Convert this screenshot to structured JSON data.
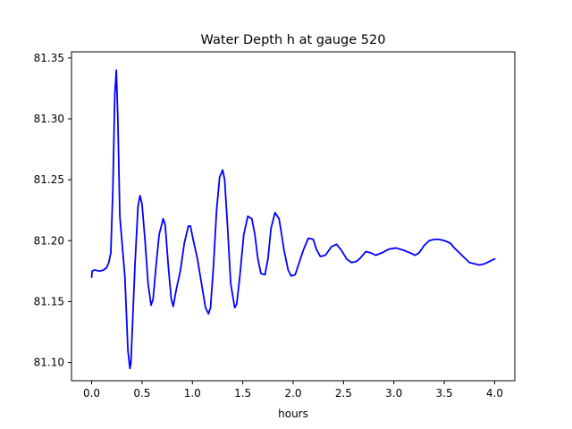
{
  "chart_data": {
    "type": "line",
    "title": "Water Depth h at gauge 520",
    "xlabel": "hours",
    "ylabel": "",
    "xlim": [
      -0.2,
      4.2
    ],
    "ylim": [
      81.085,
      81.355
    ],
    "xticks": [
      0.0,
      0.5,
      1.0,
      1.5,
      2.0,
      2.5,
      3.0,
      3.5,
      4.0
    ],
    "xtick_labels": [
      "0.0",
      "0.5",
      "1.0",
      "1.5",
      "2.0",
      "2.5",
      "3.0",
      "3.5",
      "4.0"
    ],
    "yticks": [
      81.1,
      81.15,
      81.2,
      81.25,
      81.3,
      81.35
    ],
    "ytick_labels": [
      "81.10",
      "81.15",
      "81.20",
      "81.25",
      "81.30",
      "81.35"
    ],
    "grid": false,
    "series": [
      {
        "color": "#0000ff",
        "x": [
          0.0,
          0.005,
          0.03,
          0.08,
          0.12,
          0.15,
          0.17,
          0.19,
          0.21,
          0.23,
          0.245,
          0.26,
          0.28,
          0.3,
          0.33,
          0.36,
          0.38,
          0.39,
          0.41,
          0.43,
          0.46,
          0.48,
          0.5,
          0.53,
          0.56,
          0.59,
          0.61,
          0.64,
          0.67,
          0.71,
          0.73,
          0.76,
          0.79,
          0.81,
          0.84,
          0.88,
          0.92,
          0.96,
          0.98,
          1.01,
          1.05,
          1.09,
          1.13,
          1.16,
          1.18,
          1.21,
          1.24,
          1.27,
          1.3,
          1.32,
          1.35,
          1.38,
          1.42,
          1.44,
          1.47,
          1.51,
          1.55,
          1.59,
          1.62,
          1.65,
          1.68,
          1.72,
          1.75,
          1.78,
          1.82,
          1.86,
          1.88,
          1.91,
          1.95,
          1.98,
          2.02,
          2.06,
          2.1,
          2.15,
          2.2,
          2.23,
          2.27,
          2.32,
          2.38,
          2.43,
          2.48,
          2.53,
          2.58,
          2.63,
          2.67,
          2.72,
          2.77,
          2.82,
          2.88,
          2.95,
          3.02,
          3.1,
          3.16,
          3.21,
          3.25,
          3.3,
          3.35,
          3.4,
          3.45,
          3.5,
          3.56,
          3.6,
          3.65,
          3.7,
          3.75,
          3.8,
          3.85,
          3.9,
          3.95,
          4.0
        ],
        "y": [
          81.17,
          81.175,
          81.176,
          81.175,
          81.176,
          81.178,
          81.182,
          81.19,
          81.24,
          81.32,
          81.34,
          81.3,
          81.22,
          81.2,
          81.17,
          81.11,
          81.095,
          81.1,
          81.14,
          81.18,
          81.228,
          81.237,
          81.23,
          81.2,
          81.165,
          81.147,
          81.152,
          81.18,
          81.205,
          81.218,
          81.213,
          81.18,
          81.152,
          81.146,
          81.16,
          81.175,
          81.198,
          81.212,
          81.212,
          81.2,
          81.185,
          81.165,
          81.145,
          81.14,
          81.145,
          81.18,
          81.225,
          81.252,
          81.258,
          81.25,
          81.21,
          81.165,
          81.145,
          81.148,
          81.17,
          81.205,
          81.22,
          81.218,
          81.205,
          81.185,
          81.173,
          81.172,
          81.185,
          81.21,
          81.223,
          81.218,
          81.208,
          81.192,
          81.176,
          81.171,
          81.172,
          81.182,
          81.192,
          81.202,
          81.201,
          81.193,
          81.187,
          81.188,
          81.195,
          81.197,
          81.192,
          81.185,
          81.182,
          81.183,
          81.186,
          81.191,
          81.19,
          81.188,
          81.19,
          81.193,
          81.194,
          81.192,
          81.19,
          81.188,
          81.19,
          81.196,
          81.2,
          81.201,
          81.201,
          81.2,
          81.198,
          81.194,
          81.19,
          81.186,
          81.182,
          81.181,
          81.18,
          81.181,
          81.183,
          81.185
        ]
      }
    ]
  }
}
